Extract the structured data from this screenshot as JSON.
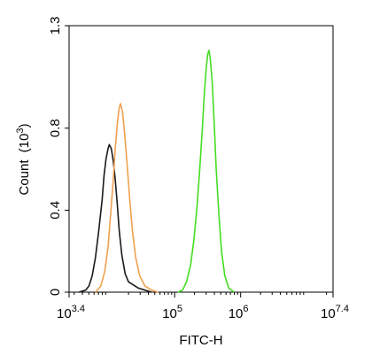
{
  "chart_data": {
    "type": "line",
    "xlabel": "FITC-H",
    "ylabel_base": "Count",
    "ylabel_exp": "3",
    "x_scale": "log10",
    "xlim": [
      3.4,
      7.4
    ],
    "ylim": [
      0,
      1.3
    ],
    "x_ticks": [
      {
        "exp": 3.4,
        "base": "10",
        "sup": "3.4"
      },
      {
        "exp": 5,
        "base": "10",
        "sup": "5"
      },
      {
        "exp": 6,
        "base": "10",
        "sup": "6"
      },
      {
        "exp": 7.4,
        "base": "10",
        "sup": "7.4"
      }
    ],
    "y_ticks": [
      {
        "value": 0,
        "label": "0"
      },
      {
        "value": 0.4,
        "label": "0.4"
      },
      {
        "value": 0.8,
        "label": "0.8"
      },
      {
        "value": 1.3,
        "label": "1.3"
      }
    ],
    "grid": false,
    "legend": "none",
    "series": [
      {
        "color": "#1a1a1a",
        "points": [
          [
            3.55,
            0
          ],
          [
            3.65,
            0.01
          ],
          [
            3.7,
            0.03
          ],
          [
            3.75,
            0.08
          ],
          [
            3.8,
            0.17
          ],
          [
            3.85,
            0.3
          ],
          [
            3.9,
            0.45
          ],
          [
            3.93,
            0.57
          ],
          [
            3.96,
            0.65
          ],
          [
            3.99,
            0.7
          ],
          [
            4.01,
            0.72
          ],
          [
            4.04,
            0.7
          ],
          [
            4.07,
            0.64
          ],
          [
            4.1,
            0.55
          ],
          [
            4.13,
            0.43
          ],
          [
            4.16,
            0.3
          ],
          [
            4.2,
            0.18
          ],
          [
            4.25,
            0.09
          ],
          [
            4.3,
            0.05
          ],
          [
            4.35,
            0.04
          ],
          [
            4.4,
            0.03
          ],
          [
            4.45,
            0.02
          ],
          [
            4.55,
            0.01
          ],
          [
            4.65,
            0
          ]
        ]
      },
      {
        "color": "#f0a050",
        "points": [
          [
            3.8,
            0
          ],
          [
            3.88,
            0.03
          ],
          [
            3.94,
            0.1
          ],
          [
            3.99,
            0.22
          ],
          [
            4.03,
            0.38
          ],
          [
            4.07,
            0.55
          ],
          [
            4.1,
            0.7
          ],
          [
            4.13,
            0.82
          ],
          [
            4.16,
            0.9
          ],
          [
            4.18,
            0.92
          ],
          [
            4.21,
            0.88
          ],
          [
            4.24,
            0.78
          ],
          [
            4.28,
            0.62
          ],
          [
            4.32,
            0.45
          ],
          [
            4.36,
            0.3
          ],
          [
            4.41,
            0.17
          ],
          [
            4.47,
            0.08
          ],
          [
            4.55,
            0.03
          ],
          [
            4.65,
            0.01
          ],
          [
            4.75,
            0
          ]
        ]
      },
      {
        "color": "#44dd22",
        "points": [
          [
            5.05,
            0
          ],
          [
            5.12,
            0.01
          ],
          [
            5.18,
            0.05
          ],
          [
            5.24,
            0.13
          ],
          [
            5.29,
            0.25
          ],
          [
            5.34,
            0.42
          ],
          [
            5.38,
            0.6
          ],
          [
            5.42,
            0.8
          ],
          [
            5.45,
            0.97
          ],
          [
            5.48,
            1.1
          ],
          [
            5.5,
            1.16
          ],
          [
            5.52,
            1.18
          ],
          [
            5.54,
            1.14
          ],
          [
            5.57,
            1.02
          ],
          [
            5.6,
            0.82
          ],
          [
            5.63,
            0.6
          ],
          [
            5.67,
            0.38
          ],
          [
            5.71,
            0.2
          ],
          [
            5.76,
            0.08
          ],
          [
            5.82,
            0.02
          ],
          [
            5.9,
            0
          ]
        ]
      }
    ]
  }
}
